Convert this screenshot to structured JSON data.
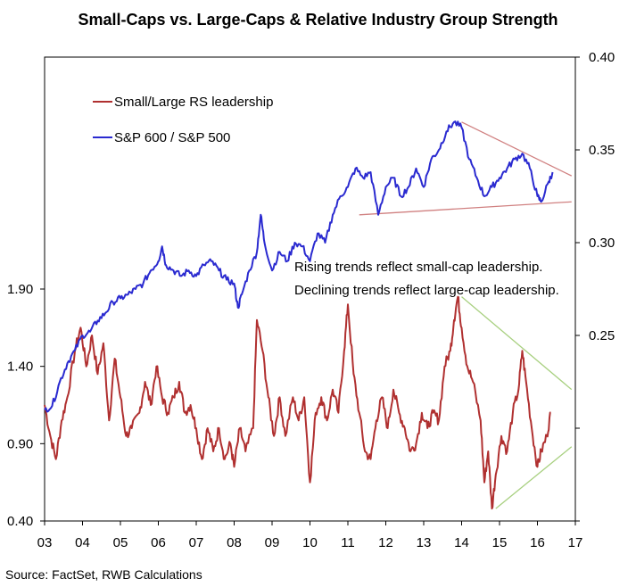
{
  "title": "Small-Caps vs. Large-Caps & Relative Industry Group Strength",
  "source": "Source: FactSet, RWB Calculations",
  "annotation": {
    "line1": "Rising trends reflect small-cap leadership.",
    "line2": "Declining trends reflect large-cap leadership."
  },
  "colors": {
    "rs": "#b03030",
    "ratio": "#2a2ad0",
    "ratio_trend": "#d08080",
    "rs_trend": "#a8d080",
    "frame": "#000000"
  },
  "chart_data": {
    "type": "line",
    "title": "Small-Caps vs. Large-Caps & Relative Industry Group Strength",
    "legend_position": "top-left",
    "grid": false,
    "x": {
      "tick_labels": [
        "03",
        "04",
        "05",
        "06",
        "07",
        "08",
        "09",
        "10",
        "11",
        "12",
        "13",
        "14",
        "15",
        "16",
        "17"
      ],
      "range": [
        2003,
        2017
      ]
    },
    "y_left": {
      "range": [
        0.4,
        3.4
      ],
      "tick_labels": [
        "0.40",
        "0.90",
        "1.40",
        "1.90"
      ],
      "tick_values": [
        0.4,
        0.9,
        1.4,
        1.9
      ]
    },
    "y_right": {
      "range": [
        0.15,
        0.4
      ],
      "tick_labels": [
        "0.25",
        "0.30",
        "0.35",
        "0.40"
      ],
      "tick_values": [
        0.25,
        0.3,
        0.35,
        0.4
      ]
    },
    "series": [
      {
        "name": "Small/Large RS leadership",
        "axis": "left",
        "color": "#b03030",
        "points": [
          [
            2003.0,
            1.15
          ],
          [
            2003.15,
            0.95
          ],
          [
            2003.3,
            0.8
          ],
          [
            2003.45,
            1.05
          ],
          [
            2003.6,
            1.2
          ],
          [
            2003.8,
            1.5
          ],
          [
            2003.95,
            1.65
          ],
          [
            2004.1,
            1.4
          ],
          [
            2004.25,
            1.6
          ],
          [
            2004.4,
            1.35
          ],
          [
            2004.55,
            1.55
          ],
          [
            2004.7,
            1.05
          ],
          [
            2004.85,
            1.45
          ],
          [
            2005.0,
            1.2
          ],
          [
            2005.15,
            0.95
          ],
          [
            2005.3,
            1.0
          ],
          [
            2005.5,
            1.1
          ],
          [
            2005.65,
            1.3
          ],
          [
            2005.8,
            1.15
          ],
          [
            2005.95,
            1.4
          ],
          [
            2006.1,
            1.2
          ],
          [
            2006.25,
            1.1
          ],
          [
            2006.4,
            1.2
          ],
          [
            2006.55,
            1.3
          ],
          [
            2006.7,
            1.1
          ],
          [
            2006.85,
            1.15
          ],
          [
            2007.0,
            1.0
          ],
          [
            2007.15,
            0.8
          ],
          [
            2007.3,
            1.0
          ],
          [
            2007.45,
            0.85
          ],
          [
            2007.6,
            1.0
          ],
          [
            2007.75,
            0.8
          ],
          [
            2007.9,
            0.9
          ],
          [
            2008.0,
            0.75
          ],
          [
            2008.15,
            1.0
          ],
          [
            2008.3,
            0.85
          ],
          [
            2008.5,
            1.0
          ],
          [
            2008.6,
            1.7
          ],
          [
            2008.75,
            1.5
          ],
          [
            2008.9,
            1.2
          ],
          [
            2009.05,
            0.95
          ],
          [
            2009.2,
            1.2
          ],
          [
            2009.35,
            0.95
          ],
          [
            2009.55,
            1.2
          ],
          [
            2009.7,
            1.05
          ],
          [
            2009.85,
            1.2
          ],
          [
            2010.0,
            0.65
          ],
          [
            2010.15,
            1.1
          ],
          [
            2010.3,
            1.2
          ],
          [
            2010.45,
            1.05
          ],
          [
            2010.6,
            1.25
          ],
          [
            2010.75,
            1.1
          ],
          [
            2010.9,
            1.5
          ],
          [
            2011.0,
            1.8
          ],
          [
            2011.15,
            1.35
          ],
          [
            2011.3,
            1.1
          ],
          [
            2011.45,
            0.85
          ],
          [
            2011.6,
            0.8
          ],
          [
            2011.75,
            1.05
          ],
          [
            2011.9,
            1.2
          ],
          [
            2012.05,
            1.0
          ],
          [
            2012.2,
            1.25
          ],
          [
            2012.35,
            1.1
          ],
          [
            2012.5,
            1.0
          ],
          [
            2012.65,
            0.85
          ],
          [
            2012.8,
            0.9
          ],
          [
            2012.95,
            1.1
          ],
          [
            2013.1,
            1.0
          ],
          [
            2013.25,
            1.1
          ],
          [
            2013.4,
            1.05
          ],
          [
            2013.55,
            1.4
          ],
          [
            2013.7,
            1.5
          ],
          [
            2013.8,
            1.7
          ],
          [
            2013.9,
            1.85
          ],
          [
            2014.0,
            1.65
          ],
          [
            2014.15,
            1.4
          ],
          [
            2014.3,
            1.3
          ],
          [
            2014.5,
            1.05
          ],
          [
            2014.6,
            0.65
          ],
          [
            2014.7,
            0.85
          ],
          [
            2014.8,
            0.48
          ],
          [
            2014.9,
            0.7
          ],
          [
            2015.05,
            0.95
          ],
          [
            2015.2,
            0.85
          ],
          [
            2015.35,
            1.1
          ],
          [
            2015.5,
            1.25
          ],
          [
            2015.6,
            1.5
          ],
          [
            2015.7,
            1.3
          ],
          [
            2015.85,
            1.0
          ],
          [
            2016.0,
            0.75
          ],
          [
            2016.1,
            0.85
          ],
          [
            2016.25,
            0.95
          ],
          [
            2016.35,
            1.1
          ]
        ]
      },
      {
        "name": "S&P 600 / S&P 500",
        "axis": "right",
        "color": "#2a2ad0",
        "points": [
          [
            2003.0,
            0.21
          ],
          [
            2003.2,
            0.212
          ],
          [
            2003.4,
            0.225
          ],
          [
            2003.6,
            0.235
          ],
          [
            2003.8,
            0.242
          ],
          [
            2004.0,
            0.25
          ],
          [
            2004.2,
            0.252
          ],
          [
            2004.4,
            0.258
          ],
          [
            2004.6,
            0.262
          ],
          [
            2004.8,
            0.268
          ],
          [
            2005.0,
            0.27
          ],
          [
            2005.2,
            0.272
          ],
          [
            2005.4,
            0.275
          ],
          [
            2005.6,
            0.278
          ],
          [
            2005.8,
            0.285
          ],
          [
            2006.0,
            0.29
          ],
          [
            2006.1,
            0.298
          ],
          [
            2006.2,
            0.288
          ],
          [
            2006.4,
            0.285
          ],
          [
            2006.6,
            0.282
          ],
          [
            2006.8,
            0.285
          ],
          [
            2007.0,
            0.282
          ],
          [
            2007.2,
            0.288
          ],
          [
            2007.4,
            0.29
          ],
          [
            2007.6,
            0.285
          ],
          [
            2007.8,
            0.28
          ],
          [
            2008.0,
            0.278
          ],
          [
            2008.1,
            0.265
          ],
          [
            2008.2,
            0.272
          ],
          [
            2008.4,
            0.285
          ],
          [
            2008.6,
            0.295
          ],
          [
            2008.7,
            0.315
          ],
          [
            2008.8,
            0.3
          ],
          [
            2009.0,
            0.285
          ],
          [
            2009.2,
            0.295
          ],
          [
            2009.4,
            0.29
          ],
          [
            2009.6,
            0.3
          ],
          [
            2009.8,
            0.298
          ],
          [
            2010.0,
            0.29
          ],
          [
            2010.2,
            0.305
          ],
          [
            2010.4,
            0.3
          ],
          [
            2010.6,
            0.315
          ],
          [
            2010.8,
            0.325
          ],
          [
            2011.0,
            0.33
          ],
          [
            2011.2,
            0.34
          ],
          [
            2011.4,
            0.335
          ],
          [
            2011.6,
            0.338
          ],
          [
            2011.8,
            0.315
          ],
          [
            2012.0,
            0.33
          ],
          [
            2012.2,
            0.335
          ],
          [
            2012.4,
            0.325
          ],
          [
            2012.6,
            0.33
          ],
          [
            2012.8,
            0.34
          ],
          [
            2013.0,
            0.33
          ],
          [
            2013.2,
            0.345
          ],
          [
            2013.4,
            0.35
          ],
          [
            2013.6,
            0.36
          ],
          [
            2013.8,
            0.365
          ],
          [
            2014.0,
            0.362
          ],
          [
            2014.2,
            0.345
          ],
          [
            2014.4,
            0.335
          ],
          [
            2014.6,
            0.325
          ],
          [
            2014.8,
            0.33
          ],
          [
            2015.0,
            0.335
          ],
          [
            2015.2,
            0.34
          ],
          [
            2015.4,
            0.345
          ],
          [
            2015.6,
            0.348
          ],
          [
            2015.8,
            0.34
          ],
          [
            2016.0,
            0.325
          ],
          [
            2016.1,
            0.322
          ],
          [
            2016.3,
            0.333
          ],
          [
            2016.4,
            0.338
          ]
        ]
      }
    ],
    "trendlines": [
      {
        "axis": "right",
        "from": [
          2014.0,
          0.365
        ],
        "to": [
          2016.9,
          0.336
        ]
      },
      {
        "axis": "right",
        "from": [
          2011.3,
          0.315
        ],
        "to": [
          2016.9,
          0.322
        ]
      },
      {
        "axis": "left",
        "from": [
          2014.0,
          1.85
        ],
        "to": [
          2016.9,
          1.25
        ]
      },
      {
        "axis": "left",
        "from": [
          2014.9,
          0.48
        ],
        "to": [
          2016.9,
          0.88
        ]
      }
    ]
  }
}
